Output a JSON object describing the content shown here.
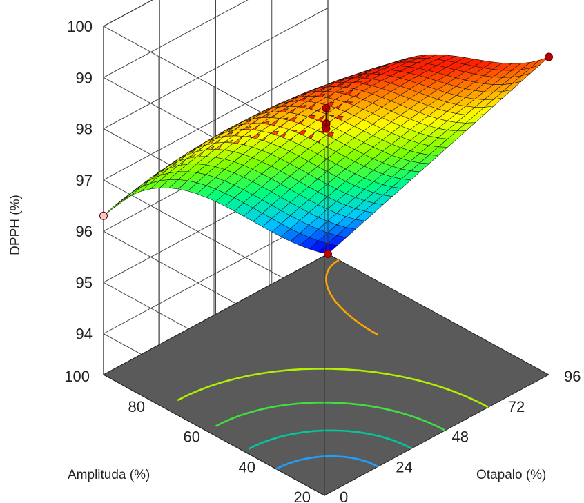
{
  "chart_data": {
    "type": "surface3d",
    "title": "",
    "zlabel": "DPPH (%)",
    "xlabel": "Otapalo (%)",
    "ylabel": "Amplituda (%)",
    "x_ticks": [
      "0",
      "24",
      "48",
      "72",
      "96"
    ],
    "y_ticks": [
      "20",
      "40",
      "60",
      "80",
      "100"
    ],
    "z_ticks": [
      "94",
      "95",
      "96",
      "97",
      "98",
      "99",
      "100"
    ],
    "xlim": [
      0,
      96
    ],
    "ylim": [
      20,
      100
    ],
    "zlim": [
      93.2,
      100
    ],
    "surface_corners": [
      {
        "otapalo": 0,
        "amplituda": 100,
        "dpph": 96.3
      },
      {
        "otapalo": 0,
        "amplituda": 20,
        "dpph": 99.9
      },
      {
        "otapalo": 96,
        "amplituda": 20,
        "dpph": 99.4
      },
      {
        "otapalo": 96,
        "amplituda": 100,
        "dpph": 93.2
      }
    ],
    "design_points": [
      {
        "otapalo": 0,
        "amplituda": 100,
        "dpph": 96.3,
        "above_surface": false
      },
      {
        "otapalo": 96,
        "amplituda": 20,
        "dpph": 99.4,
        "above_surface": true
      },
      {
        "otapalo": 96,
        "amplituda": 100,
        "dpph": 93.2,
        "above_surface": true
      },
      {
        "otapalo": 48,
        "amplituda": 60,
        "dpph": 98.4,
        "above_surface": true
      },
      {
        "otapalo": 48,
        "amplituda": 60,
        "dpph": 98.1,
        "above_surface": true
      },
      {
        "otapalo": 48,
        "amplituda": 60,
        "dpph": 98.0,
        "above_surface": true
      }
    ],
    "colorscale": [
      "#0000ff",
      "#00c8ff",
      "#00ff7f",
      "#7fff00",
      "#ffff00",
      "#ff8c00",
      "#ff2000"
    ],
    "floor_color": "#5a5a5a",
    "contour_colors": [
      "#1ea0ff",
      "#00c8a0",
      "#40e040",
      "#b0f000",
      "#ffa500"
    ],
    "grid": true
  }
}
